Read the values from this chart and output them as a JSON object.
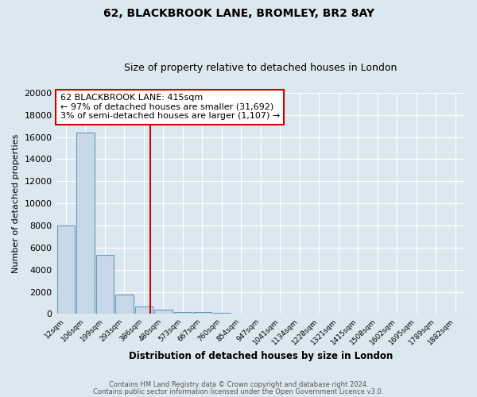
{
  "title1": "62, BLACKBROOK LANE, BROMLEY, BR2 8AY",
  "title2": "Size of property relative to detached houses in London",
  "xlabel": "Distribution of detached houses by size in London",
  "ylabel": "Number of detached properties",
  "bin_labels": [
    "12sqm",
    "106sqm",
    "199sqm",
    "293sqm",
    "386sqm",
    "480sqm",
    "573sqm",
    "667sqm",
    "760sqm",
    "854sqm",
    "947sqm",
    "1041sqm",
    "1134sqm",
    "1228sqm",
    "1321sqm",
    "1415sqm",
    "1508sqm",
    "1602sqm",
    "1695sqm",
    "1789sqm",
    "1882sqm"
  ],
  "bar_heights": [
    8000,
    16400,
    5350,
    1750,
    700,
    380,
    200,
    150,
    130,
    50,
    0,
    0,
    0,
    0,
    0,
    0,
    0,
    0,
    0,
    0,
    0
  ],
  "bar_color": "#c8d8e8",
  "bar_edge_color": "#6699bb",
  "vline_x": 4.33,
  "vline_color": "#cc0000",
  "annotation_line1": "62 BLACKBROOK LANE: 415sqm",
  "annotation_line2": "← 97% of detached houses are smaller (31,692)",
  "annotation_line3": "3% of semi-detached houses are larger (1,107) →",
  "annotation_box_color": "#ffffff",
  "annotation_box_edge_color": "#cc0000",
  "ylim": [
    0,
    20000
  ],
  "yticks": [
    0,
    2000,
    4000,
    6000,
    8000,
    10000,
    12000,
    14000,
    16000,
    18000,
    20000
  ],
  "footnote1": "Contains HM Land Registry data © Crown copyright and database right 2024.",
  "footnote2": "Contains public sector information licensed under the Open Government Licence v3.0.",
  "bg_color": "#dce8f0",
  "grid_color": "#ffffff",
  "title1_fontsize": 10,
  "title2_fontsize": 9,
  "annotation_fontsize": 8
}
